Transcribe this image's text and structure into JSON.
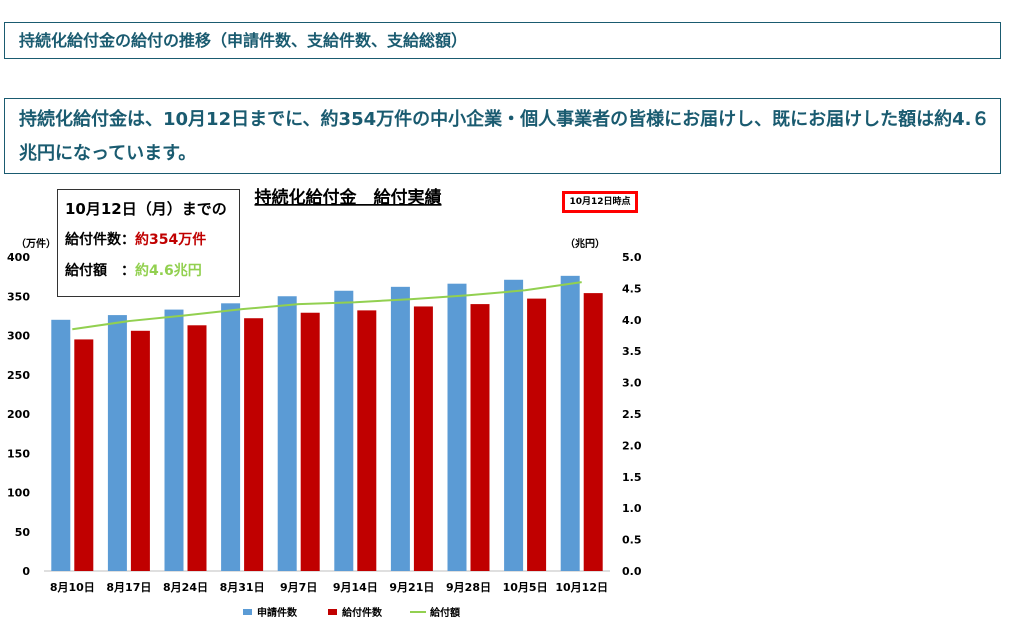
{
  "header": {
    "title": "持続化給付金の給付の推移（申請件数、支給件数、支給総額）"
  },
  "summary": {
    "text": "持続化給付金は、10月12日までに、約354万件の中小企業・個人事業者の皆様にお届けし、既にお届けした額は約4.６兆円になっています。"
  },
  "callout": {
    "heading": "10月12日（月）までの",
    "count_label": "給付件数：",
    "count_value": "約354万件",
    "amount_label": "給付額　：",
    "amount_value": "約4.6兆円"
  },
  "badge": {
    "text": "10月12日時点"
  },
  "colors": {
    "frame": "#1a5b70",
    "applications": "#5b9bd5",
    "payments": "#c00000",
    "amount": "#92d050"
  },
  "chart_data": {
    "type": "bar",
    "title": "持続化給付金　給付実績",
    "categories": [
      "8月10日",
      "8月17日",
      "8月24日",
      "8月31日",
      "9月7日",
      "9月14日",
      "9月21日",
      "9月28日",
      "10月5日",
      "10月12日"
    ],
    "y_left_label": "（万件）",
    "y_right_label": "（兆円）",
    "ylim": [
      0,
      400
    ],
    "ylim_right": [
      0,
      5.0
    ],
    "y_ticks": [
      "0",
      "50",
      "100",
      "150",
      "200",
      "250",
      "300",
      "350",
      "400"
    ],
    "y_right_ticks": [
      "0.0",
      "0.5",
      "1.0",
      "1.5",
      "2.0",
      "2.5",
      "3.0",
      "3.5",
      "4.0",
      "4.5",
      "5.0"
    ],
    "series": [
      {
        "name": "申請件数",
        "type": "bar",
        "axis": "left",
        "values": [
          320,
          326,
          333,
          341,
          350,
          357,
          362,
          366,
          371,
          376
        ]
      },
      {
        "name": "給付件数",
        "type": "bar",
        "axis": "left",
        "values": [
          295,
          306,
          313,
          322,
          329,
          332,
          337,
          340,
          347,
          354
        ]
      },
      {
        "name": "給付額",
        "type": "line",
        "axis": "right",
        "values": [
          3.85,
          3.98,
          4.07,
          4.17,
          4.25,
          4.28,
          4.33,
          4.39,
          4.47,
          4.6
        ]
      }
    ],
    "legend": "bottom",
    "grid": false
  }
}
